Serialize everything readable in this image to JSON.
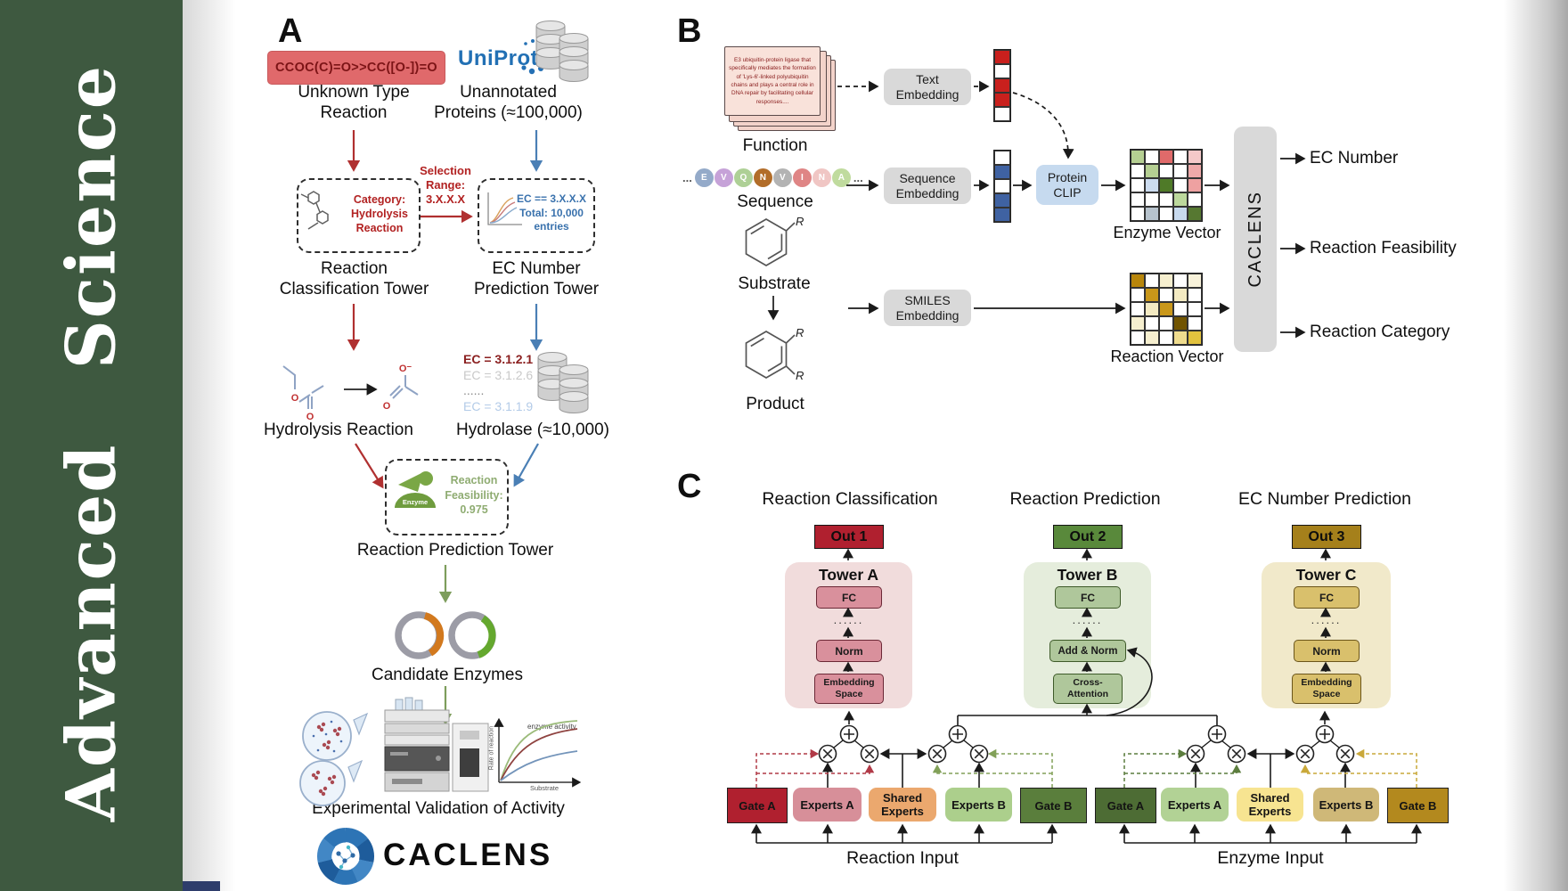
{
  "journal": {
    "name": "Advanced Science"
  },
  "panelA": {
    "label": "A",
    "smiles": "CCOC(C)=O>>CC([O-])=O",
    "unknown_reaction": "Unknown Type\nReaction",
    "uniprot": "UniProt",
    "unannotated": "Unannotated\nProteins (≈100,000)",
    "selection": "Selection\nRange:\n3.X.X.X",
    "category": "Category:\nHydrolysis\nReaction",
    "ec_box": "EC == 3.X.X.X\nTotal: 10,000\nentries",
    "classification_tower": "Reaction\nClassification Tower",
    "ec_tower": "EC Number\nPrediction Tower",
    "ec_list": [
      "EC = 3.1.2.1",
      "EC = 3.1.2.6",
      "......",
      "EC = 3.1.1.9"
    ],
    "hydrolysis": "Hydrolysis Reaction",
    "hydrolase": "Hydrolase (≈10,000)",
    "enzyme_icon": "Enzyme",
    "feasibility": "Reaction\nFeasibility:\n0.975",
    "prediction_tower": "Reaction Prediction Tower",
    "candidates": "Candidate Enzymes",
    "graph": {
      "series": "enzyme activity",
      "ylabel": "Rate of reaction",
      "xlabel": "Substrate"
    },
    "validation": "Experimental Validation of Activity",
    "brand": "CACLENS",
    "atom_o": "O",
    "atom_o_minus": "O⁻"
  },
  "panelB": {
    "label": "B",
    "function_text": "E3 ubiquitin-protein ligase that specifically mediates the formation of 'Lys-6'-linked polyubiquitin chains and plays a central role in DNA repair by facilitating cellular responses....",
    "function_label": "Function",
    "ellipsis": "...",
    "residues": [
      {
        "letter": "E",
        "color": "#94aac9"
      },
      {
        "letter": "V",
        "color": "#c6a2d8"
      },
      {
        "letter": "Q",
        "color": "#aed096"
      },
      {
        "letter": "N",
        "color": "#b26d29"
      },
      {
        "letter": "V",
        "color": "#b3b3b3"
      },
      {
        "letter": "I",
        "color": "#df8585"
      },
      {
        "letter": "N",
        "color": "#f0c6c4"
      },
      {
        "letter": "A",
        "color": "#c0db9e"
      }
    ],
    "sequence_label": "Sequence",
    "substrate_label": "Substrate",
    "product_label": "Product",
    "r_label": "R",
    "text_embedding": "Text\nEmbedding",
    "sequence_embedding": "Sequence\nEmbedding",
    "smiles_embedding": "SMILES\nEmbedding",
    "protein_clip": "Protein\nCLIP",
    "text_vector": [
      "#c9201d",
      "#ffffff",
      "#c9201d",
      "#c9201d",
      "#ffffff"
    ],
    "sequence_vector": [
      "#ffffff",
      "#3f62a2",
      "#ffffff",
      "#3f62a2",
      "#3f62a2"
    ],
    "enzyme_vector_label": "Enzyme Vector",
    "reaction_vector_label": "Reaction Vector",
    "enzyme_grid": [
      [
        "#b5cf92",
        "#ffffff",
        "#e06a6a",
        "#ffffff",
        "#f5c9c9"
      ],
      [
        "#ffffff",
        "#b5cf92",
        "#ffffff",
        "#ffffff",
        "#efa9a9"
      ],
      [
        "#ffffff",
        "#ccdcf0",
        "#4f7a28",
        "#ffffff",
        "#eea1a1"
      ],
      [
        "#ffffff",
        "#ffffff",
        "#ffffff",
        "#bcd89c",
        "#ffffff"
      ],
      [
        "#ffffff",
        "#b7c3cd",
        "#ffffff",
        "#c8daee",
        "#567831"
      ]
    ],
    "reaction_grid": [
      [
        "#b8860b",
        "#ffffff",
        "#f6efcf",
        "#ffffff",
        "#f8f2da"
      ],
      [
        "#ffffff",
        "#c9971a",
        "#ffffff",
        "#f3eac2",
        "#ffffff"
      ],
      [
        "#ffffff",
        "#f3eac2",
        "#c9971a",
        "#ffffff",
        "#ffffff"
      ],
      [
        "#f6efcf",
        "#ffffff",
        "#ffffff",
        "#715400",
        "#ffffff"
      ],
      [
        "#ffffff",
        "#f6efcf",
        "#ffffff",
        "#efdc8e",
        "#e2c23e"
      ]
    ],
    "caclens": "CACLENS",
    "outputs": [
      "EC Number",
      "Reaction Feasibility",
      "Reaction Category"
    ]
  },
  "panelC": {
    "label": "C",
    "headers": [
      "Reaction Classification",
      "Reaction Prediction",
      "EC Number Prediction"
    ],
    "outs": [
      "Out 1",
      "Out 2",
      "Out 3"
    ],
    "towerA": {
      "title": "Tower A",
      "fc": "FC",
      "dots": "......",
      "norm": "Norm",
      "emb": "Embedding\nSpace"
    },
    "towerB": {
      "title": "Tower B",
      "fc": "FC",
      "dots": "......",
      "addnorm": "Add & Norm",
      "cross": "Cross-\nAttention"
    },
    "towerC": {
      "title": "Tower C",
      "fc": "FC",
      "dots": "......",
      "norm": "Norm",
      "emb": "Embedding\nSpace"
    },
    "reaction_group": {
      "gate_a": "Gate A",
      "experts_a": "Experts A",
      "shared": "Shared\nExperts",
      "experts_b": "Experts B",
      "gate_b": "Gate B",
      "input": "Reaction Input"
    },
    "enzyme_group": {
      "gate_a": "Gate A",
      "experts_a": "Experts A",
      "shared": "Shared\nExperts",
      "experts_b": "Experts B",
      "gate_b": "Gate B",
      "input": "Enzyme Input"
    }
  }
}
